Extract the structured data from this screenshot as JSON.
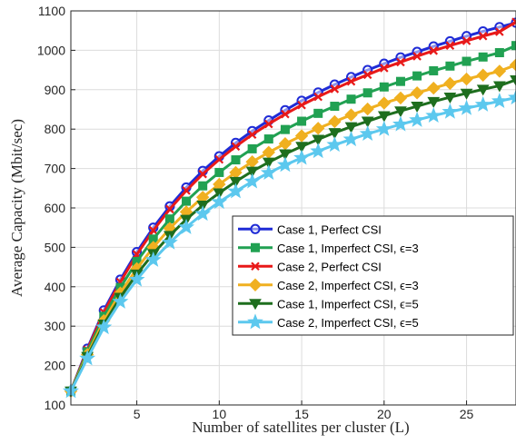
{
  "chart_data": {
    "type": "line",
    "xlabel": "Number of satellites per cluster (L)",
    "ylabel": "Average Capacity (Mbit/sec)",
    "xlim": [
      1,
      28
    ],
    "ylim": [
      100,
      1100
    ],
    "xticks": [
      5,
      10,
      15,
      20,
      25
    ],
    "yticks": [
      100,
      200,
      300,
      400,
      500,
      600,
      700,
      800,
      900,
      1000,
      1100
    ],
    "grid": true,
    "legend_position": "lower-right",
    "x": [
      1,
      2,
      3,
      4,
      5,
      6,
      7,
      8,
      9,
      10,
      11,
      12,
      13,
      14,
      15,
      16,
      17,
      18,
      19,
      20,
      21,
      22,
      23,
      24,
      25,
      26,
      27,
      28
    ],
    "series": [
      {
        "name": "Case 1, Perfect CSI",
        "color": "#1f2bd6",
        "marker": "circle",
        "values": [
          135,
          243,
          340,
          418,
          488,
          550,
          604,
          652,
          694,
          731,
          765,
          795,
          822,
          848,
          872,
          893,
          913,
          932,
          950,
          966,
          982,
          996,
          1010,
          1023,
          1036,
          1048,
          1059,
          1070
        ]
      },
      {
        "name": "Case 1, Imperfect CSI, ϵ=3",
        "color": "#21a152",
        "marker": "square",
        "values": [
          135,
          235,
          325,
          398,
          464,
          521,
          572,
          617,
          656,
          690,
          722,
          750,
          775,
          799,
          820,
          840,
          858,
          876,
          892,
          907,
          921,
          935,
          948,
          960,
          972,
          983,
          994,
          1012
        ]
      },
      {
        "name": "Case 2, Perfect CSI",
        "color": "#e81919",
        "marker": "x",
        "values": [
          135,
          240,
          335,
          412,
          482,
          543,
          597,
          644,
          686,
          723,
          756,
          786,
          813,
          838,
          861,
          882,
          902,
          921,
          938,
          955,
          970,
          985,
          999,
          1012,
          1024,
          1036,
          1047,
          1072
        ]
      },
      {
        "name": "Case 2, Imperfect CSI, ϵ=3",
        "color": "#f0b020",
        "marker": "diamond",
        "values": [
          135,
          228,
          314,
          384,
          446,
          500,
          548,
          590,
          627,
          660,
          690,
          717,
          741,
          763,
          783,
          802,
          819,
          836,
          851,
          866,
          879,
          892,
          904,
          916,
          927,
          937,
          947,
          963
        ]
      },
      {
        "name": "Case 1, Imperfect CSI, ϵ=5",
        "color": "#1e6e1e",
        "marker": "triangle-down",
        "values": [
          135,
          223,
          305,
          373,
          432,
          484,
          530,
          571,
          607,
          638,
          667,
          693,
          716,
          737,
          756,
          774,
          791,
          806,
          820,
          834,
          846,
          858,
          870,
          881,
          891,
          901,
          910,
          925
        ]
      },
      {
        "name": "Case 2, Imperfect CSI, ϵ=5",
        "color": "#5cc8ee",
        "marker": "star",
        "values": [
          135,
          218,
          297,
          362,
          418,
          468,
          512,
          551,
          585,
          615,
          642,
          667,
          689,
          709,
          727,
          744,
          760,
          774,
          788,
          800,
          812,
          823,
          834,
          844,
          853,
          862,
          871,
          880
        ]
      }
    ]
  }
}
